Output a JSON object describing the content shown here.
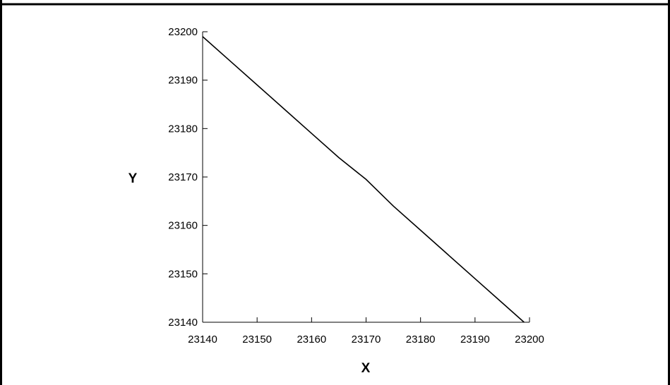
{
  "chart_data": {
    "type": "line",
    "title": "",
    "xlabel": "X",
    "ylabel": "Y",
    "xlim": [
      23140,
      23200
    ],
    "ylim": [
      23140,
      23200
    ],
    "x_ticks": [
      23140,
      23150,
      23160,
      23170,
      23180,
      23190,
      23200
    ],
    "y_ticks": [
      23140,
      23150,
      23160,
      23170,
      23180,
      23190,
      23200
    ],
    "grid": false,
    "legend": "none",
    "series": [
      {
        "color": "#000000",
        "points": [
          [
            23140,
            23199
          ],
          [
            23145,
            23194
          ],
          [
            23150,
            23189
          ],
          [
            23155,
            23184
          ],
          [
            23160,
            23179
          ],
          [
            23165,
            23174
          ],
          [
            23170,
            23169.5
          ],
          [
            23175,
            23164
          ],
          [
            23180,
            23159
          ],
          [
            23185,
            23154
          ],
          [
            23190,
            23149
          ],
          [
            23195,
            23144
          ],
          [
            23199,
            23140
          ]
        ]
      }
    ]
  }
}
